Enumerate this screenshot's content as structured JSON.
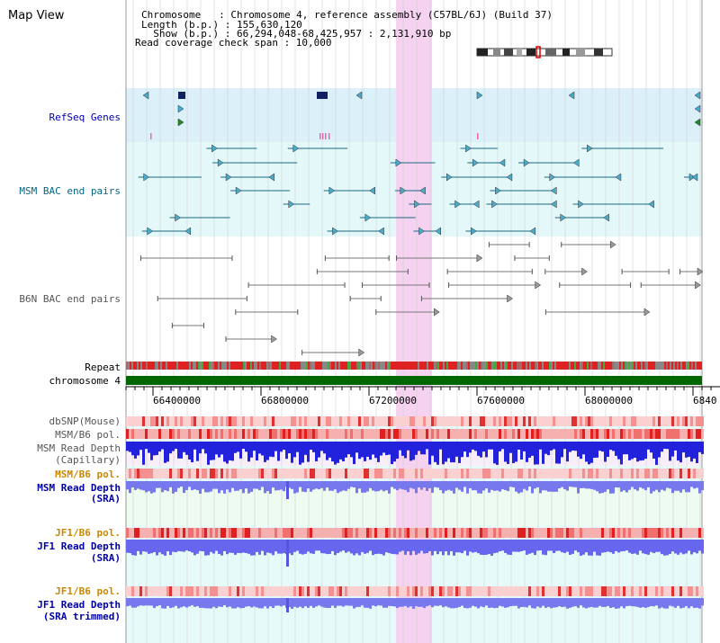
{
  "title": "Map View",
  "header": {
    "line1": "Chromosome   : Chromosome 4, reference assembly (C57BL/6J) (Build 37)",
    "line2": "Length (b.p.) : 155,630,120",
    "line3": "  Show (b.p.) : 66,294,048-68,425,957 : 2,131,910 bp",
    "line4": "Read coverage check span : 10,000"
  },
  "tracks": {
    "refseq": "RefSeq Genes",
    "msm_bac": "MSM BAC end pairs",
    "b6n_bac": "B6N BAC end pairs",
    "repeat": "Repeat",
    "chromosome": "chromosome 4",
    "dbsnp": "dbSNP(Mouse)",
    "msm_b6_pol": "MSM/B6 pol.",
    "msm_depth_cap_1": "MSM Read Depth",
    "msm_depth_cap_2": "(Capillary)",
    "msm_b6_pol_2": "MSM/B6 pol.",
    "msm_depth_sra_1": "MSM Read Depth",
    "msm_depth_sra_2": "(SRA)",
    "jf1_b6_pol": "JF1/B6 pol.",
    "jf1_depth_sra_1": "JF1 Read Depth",
    "jf1_depth_sra_2": "(SRA)",
    "jf1_b6_pol_2": "JF1/B6 pol.",
    "jf1_depth_trim_1": "JF1 Read Depth",
    "jf1_depth_trim_2": "(SRA trimmed)"
  },
  "axis": {
    "ticks": [
      "66400000",
      "66800000",
      "67200000",
      "67600000",
      "68000000",
      "6840"
    ]
  },
  "colors": {
    "blue_label": "#0000aa",
    "teal_label": "#006688",
    "gray_label": "#555555",
    "orange_label": "#cc8800",
    "highlight": "#f5d2f0",
    "refseq_bg": "#dcf0fa",
    "bac_bg": "#e4f8fa",
    "lower_bg": "#e6fafa",
    "chrom_green": "#006600"
  }
}
